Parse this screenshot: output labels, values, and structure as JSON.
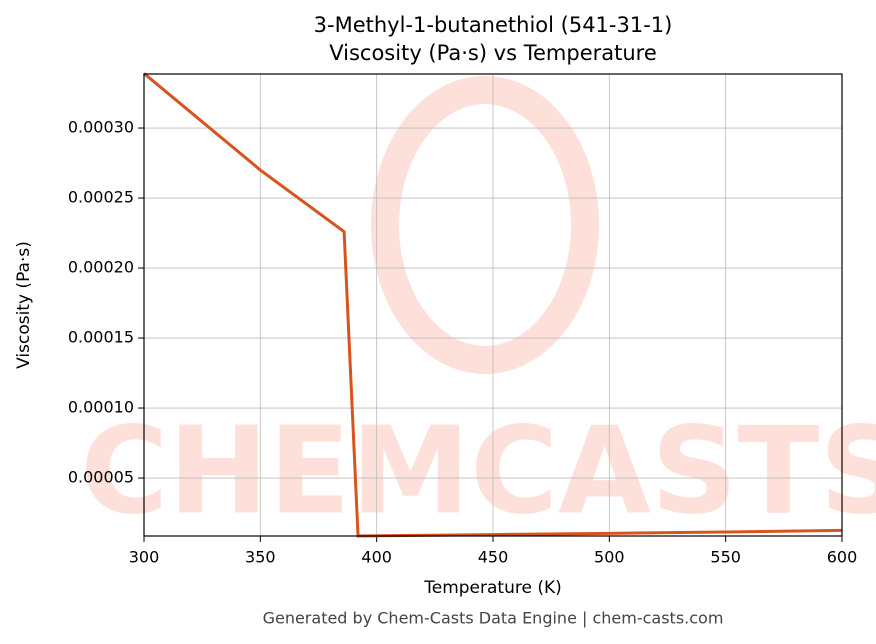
{
  "chart_data": {
    "type": "line",
    "title": "3-Methyl-1-butanethiol (541-31-1)",
    "subtitle": "Viscosity (Pa·s) vs Temperature",
    "x_label": "Temperature (K)",
    "y_label": "Viscosity (Pa·s)",
    "footer": "Generated by Chem-Casts Data Engine | chem-casts.com",
    "watermark": "CHEMCASTS",
    "x": [
      300,
      350,
      386,
      392,
      450,
      500,
      550,
      600
    ],
    "series": [
      {
        "name": "Viscosity",
        "color": "#d9531e",
        "values": [
          0.000339,
          0.00027,
          0.000226,
          8.6e-06,
          9.6e-06,
          1.05e-05,
          1.15e-05,
          1.26e-05
        ]
      }
    ],
    "xlim": [
      300,
      600
    ],
    "xticks": [
      300,
      350,
      400,
      450,
      500,
      550,
      600
    ],
    "ylim": [
      8.6e-06,
      0.0003386
    ],
    "yticks": [
      {
        "value": 5e-05,
        "label": "0.00005"
      },
      {
        "value": 0.0001,
        "label": "0.00010"
      },
      {
        "value": 0.00015,
        "label": "0.00015"
      },
      {
        "value": 0.0002,
        "label": "0.00020"
      },
      {
        "value": 0.00025,
        "label": "0.00025"
      },
      {
        "value": 0.0003,
        "label": "0.00030"
      }
    ],
    "grid": true
  }
}
